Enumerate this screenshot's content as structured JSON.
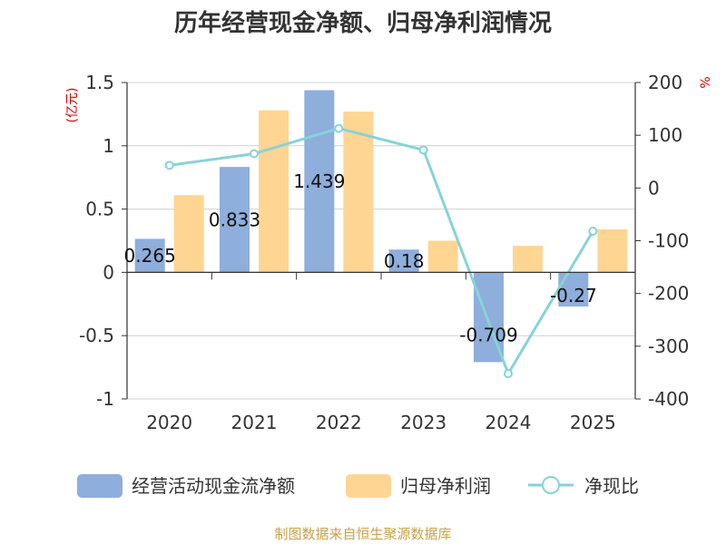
{
  "chart_data": {
    "type": "bar",
    "title": "历年经营现金净额、归母净利润情况",
    "categories": [
      "2020",
      "2021",
      "2022",
      "2023",
      "2024",
      "2025"
    ],
    "series": [
      {
        "name": "经营活动现金流净额",
        "axis": "left",
        "type": "bar",
        "color": "#8eaedc",
        "values": [
          0.265,
          0.833,
          1.439,
          0.18,
          -0.709,
          -0.27
        ],
        "labels": [
          "0.265",
          "0.833",
          "1.439",
          "0.18",
          "-0.709",
          "-0.27"
        ]
      },
      {
        "name": "归母净利润",
        "axis": "left",
        "type": "bar",
        "color": "#ffd592",
        "values": [
          0.61,
          1.28,
          1.27,
          0.25,
          0.21,
          0.34
        ]
      },
      {
        "name": "净现比",
        "axis": "right",
        "type": "line",
        "color": "#86d3d8",
        "values": [
          43,
          65,
          113,
          72,
          -352,
          -82
        ]
      }
    ],
    "left_axis": {
      "unit": "(亿元)",
      "ylim": [
        -1,
        1.5
      ],
      "ticks": [
        -1,
        -0.5,
        0,
        0.5,
        1,
        1.5
      ],
      "tick_labels": [
        "-1",
        "-0.5",
        "0",
        "0.5",
        "1",
        "1.5"
      ]
    },
    "right_axis": {
      "unit": "%",
      "ylim": [
        -400,
        200
      ],
      "ticks": [
        -400,
        -300,
        -200,
        -100,
        0,
        100,
        200
      ],
      "tick_labels": [
        "-400",
        "-300",
        "-200",
        "-100",
        "0",
        "100",
        "200"
      ]
    },
    "legend": {
      "position": "bottom"
    },
    "grid": true,
    "source": "制图数据来自恒生聚源数据库"
  }
}
